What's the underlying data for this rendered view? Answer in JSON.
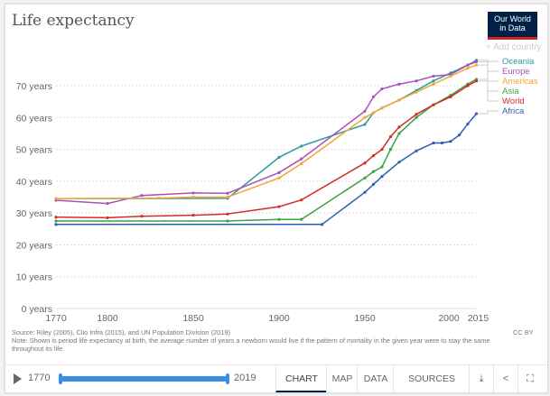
{
  "header": {
    "title": "Life expectancy",
    "logo_line1": "Our World",
    "logo_line2": "in Data",
    "add_country": "+ Add country"
  },
  "chart_data": {
    "type": "line",
    "title": "Life expectancy",
    "xlabel": "",
    "ylabel": "",
    "xlim": [
      1770,
      2015
    ],
    "ylim": [
      0,
      80
    ],
    "x_ticks": [
      1770,
      1800,
      1850,
      1900,
      1950,
      2000,
      2015
    ],
    "y_ticks": [
      0,
      10,
      20,
      30,
      40,
      50,
      60,
      70
    ],
    "y_tick_labels": [
      "0 years",
      "10 years",
      "20 years",
      "30 years",
      "40 years",
      "50 years",
      "60 years",
      "70 years"
    ],
    "grid": "horizontal-dotted",
    "legend": "right-end-labels",
    "series": [
      {
        "name": "Oceania",
        "color": "#2a9d9a",
        "points": [
          [
            1770,
            34.5
          ],
          [
            1870,
            34.6
          ],
          [
            1900,
            47.5
          ],
          [
            1913,
            51
          ],
          [
            1950,
            57.8
          ],
          [
            1955,
            61.5
          ],
          [
            1960,
            63
          ],
          [
            1970,
            65.5
          ],
          [
            1980,
            68.5
          ],
          [
            1990,
            71.5
          ],
          [
            2000,
            74
          ],
          [
            2010,
            76.5
          ],
          [
            2015,
            78
          ]
        ]
      },
      {
        "name": "Europe",
        "color": "#a652ba",
        "points": [
          [
            1770,
            34
          ],
          [
            1800,
            33
          ],
          [
            1820,
            35.5
          ],
          [
            1850,
            36.3
          ],
          [
            1870,
            36.2
          ],
          [
            1900,
            42.7
          ],
          [
            1913,
            47
          ],
          [
            1950,
            62
          ],
          [
            1955,
            66.5
          ],
          [
            1960,
            69
          ],
          [
            1970,
            70.5
          ],
          [
            1980,
            71.5
          ],
          [
            1990,
            73
          ],
          [
            2000,
            73.5
          ],
          [
            2010,
            76.5
          ],
          [
            2015,
            77.5
          ]
        ]
      },
      {
        "name": "Americas",
        "color": "#f4a438",
        "points": [
          [
            1770,
            34.5
          ],
          [
            1830,
            34.7
          ],
          [
            1850,
            35
          ],
          [
            1870,
            35
          ],
          [
            1900,
            41
          ],
          [
            1913,
            45.5
          ],
          [
            1950,
            60
          ],
          [
            1955,
            61.5
          ],
          [
            1960,
            63
          ],
          [
            1970,
            65.5
          ],
          [
            1980,
            68
          ],
          [
            1990,
            70.5
          ],
          [
            2000,
            73
          ],
          [
            2010,
            75.5
          ],
          [
            2015,
            76.5
          ]
        ]
      },
      {
        "name": "Asia",
        "color": "#3aa344",
        "points": [
          [
            1770,
            27.5
          ],
          [
            1870,
            27.5
          ],
          [
            1900,
            28
          ],
          [
            1913,
            28
          ],
          [
            1950,
            41
          ],
          [
            1955,
            43
          ],
          [
            1960,
            44.5
          ],
          [
            1965,
            50
          ],
          [
            1970,
            55
          ],
          [
            1980,
            60
          ],
          [
            1990,
            64
          ],
          [
            2000,
            67
          ],
          [
            2010,
            70.5
          ],
          [
            2015,
            72
          ]
        ]
      },
      {
        "name": "World",
        "color": "#d42b2b",
        "points": [
          [
            1770,
            28.7
          ],
          [
            1800,
            28.5
          ],
          [
            1820,
            29
          ],
          [
            1850,
            29.3
          ],
          [
            1870,
            29.7
          ],
          [
            1900,
            32
          ],
          [
            1913,
            34.1
          ],
          [
            1950,
            45.7
          ],
          [
            1955,
            48
          ],
          [
            1960,
            50
          ],
          [
            1965,
            54
          ],
          [
            1970,
            57
          ],
          [
            1980,
            61
          ],
          [
            1990,
            64
          ],
          [
            2000,
            66.5
          ],
          [
            2010,
            70
          ],
          [
            2015,
            71.5
          ]
        ]
      },
      {
        "name": "Africa",
        "color": "#2d5fb0",
        "points": [
          [
            1770,
            26.4
          ],
          [
            1925,
            26.4
          ],
          [
            1950,
            36.5
          ],
          [
            1955,
            39
          ],
          [
            1960,
            41.5
          ],
          [
            1970,
            46
          ],
          [
            1980,
            49.5
          ],
          [
            1990,
            52
          ],
          [
            1995,
            52
          ],
          [
            2000,
            52.5
          ],
          [
            2005,
            54.5
          ],
          [
            2010,
            58
          ],
          [
            2015,
            61.2
          ]
        ]
      }
    ]
  },
  "footer": {
    "source": "Source: Riley (2005), Clio Infra (2015), and UN Population Division (2019)",
    "note": "Note: Shown is period life expectancy at birth, the average number of years a newborn would live if the pattern of mortality in the given year were to stay the same throughout its life.",
    "license": "CC BY"
  },
  "controls": {
    "start_year": "1770",
    "end_year": "2019",
    "tabs": [
      "CHART",
      "MAP",
      "DATA",
      "SOURCES"
    ],
    "active_tab": "CHART",
    "icons": [
      "download-icon",
      "share-icon",
      "fullscreen-icon"
    ]
  }
}
